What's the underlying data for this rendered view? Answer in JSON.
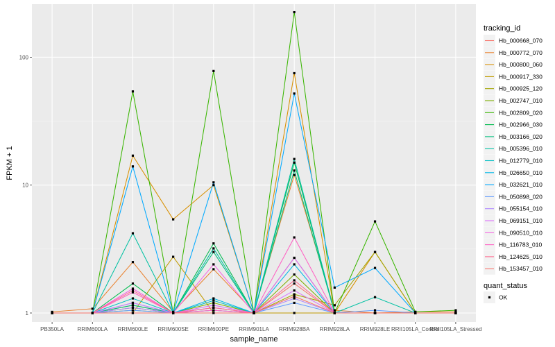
{
  "chart_data": {
    "type": "line",
    "xlabel": "sample_name",
    "ylabel": "FPKM + 1",
    "y_scale": "log10",
    "ylim": [
      0.85,
      260
    ],
    "y_ticks": [
      1,
      10,
      100
    ],
    "y_tick_labels": [
      "1",
      "10",
      "100"
    ],
    "categories": [
      "PB350LA",
      "RRIM600LA",
      "RRIM600LE",
      "RRIM600SE",
      "RRIM600PE",
      "RRIM901LA",
      "RRIM928BA",
      "RRIM928LA",
      "RRIM928LE",
      "RRII105LA_Control",
      "RRII105LA_Stressed"
    ],
    "legend_title": "tracking_id",
    "legend_position": "right",
    "grid": true,
    "series": [
      {
        "name": "Hb_000668_070",
        "color": "#F8766D",
        "values": [
          1.0,
          1.0,
          1.15,
          1.0,
          1.1,
          1.0,
          1.7,
          1.0,
          1.0,
          1.0,
          1.0
        ]
      },
      {
        "name": "Hb_000772_070",
        "color": "#EA8331",
        "values": [
          1.02,
          1.08,
          2.5,
          1.02,
          2.2,
          1.02,
          12,
          1.05,
          1.0,
          1.02,
          1.02
        ]
      },
      {
        "name": "Hb_000800_060",
        "color": "#D89000",
        "values": [
          1.0,
          1.0,
          17,
          5.4,
          10,
          1.0,
          75,
          1.0,
          3.0,
          1.0,
          1.0
        ]
      },
      {
        "name": "Hb_000917_330",
        "color": "#C09B00",
        "values": [
          1.0,
          1.0,
          1.0,
          2.75,
          1.0,
          1.0,
          1.0,
          1.0,
          1.0,
          1.0,
          1.0
        ]
      },
      {
        "name": "Hb_000925_120",
        "color": "#A3A500",
        "values": [
          1.0,
          1.0,
          1.05,
          1.0,
          1.05,
          1.0,
          1.4,
          1.15,
          3.0,
          1.0,
          1.0
        ]
      },
      {
        "name": "Hb_002747_010",
        "color": "#7CAE00",
        "values": [
          1.0,
          1.0,
          1.1,
          1.0,
          1.2,
          1.0,
          2.0,
          1.0,
          1.0,
          1.0,
          1.0
        ]
      },
      {
        "name": "Hb_002809_020",
        "color": "#39B600",
        "values": [
          1.0,
          1.0,
          54,
          1.0,
          78,
          1.0,
          225,
          1.0,
          5.2,
          1.02,
          1.05
        ]
      },
      {
        "name": "Hb_002966_030",
        "color": "#00BB4E",
        "values": [
          1.0,
          1.0,
          1.7,
          1.0,
          3.5,
          1.0,
          15,
          1.0,
          1.0,
          1.0,
          1.0
        ]
      },
      {
        "name": "Hb_003166_020",
        "color": "#00BF7D",
        "values": [
          1.0,
          1.0,
          1.15,
          1.0,
          3.0,
          1.0,
          13,
          1.0,
          1.0,
          1.0,
          1.0
        ]
      },
      {
        "name": "Hb_005396_010",
        "color": "#00C1A3",
        "values": [
          1.0,
          1.0,
          4.2,
          1.0,
          3.2,
          1.0,
          16,
          1.0,
          1.33,
          1.0,
          1.0
        ]
      },
      {
        "name": "Hb_012779_010",
        "color": "#00BFC4",
        "values": [
          1.0,
          1.0,
          1.3,
          1.0,
          1.25,
          1.0,
          2.7,
          1.0,
          1.0,
          1.0,
          1.0
        ]
      },
      {
        "name": "Hb_026650_010",
        "color": "#00B8E7",
        "values": [
          1.0,
          1.0,
          1.2,
          1.0,
          1.3,
          1.0,
          2.4,
          1.0,
          1.0,
          1.0,
          1.0
        ]
      },
      {
        "name": "Hb_032621_010",
        "color": "#00A9FF",
        "values": [
          1.0,
          1.0,
          14,
          1.0,
          10.5,
          1.0,
          52,
          1.58,
          2.25,
          1.0,
          1.0
        ]
      },
      {
        "name": "Hb_050898_020",
        "color": "#619CFF",
        "values": [
          1.0,
          1.0,
          1.05,
          1.0,
          1.05,
          1.0,
          1.2,
          1.0,
          1.05,
          1.0,
          1.0
        ]
      },
      {
        "name": "Hb_055154_010",
        "color": "#AE87FF",
        "values": [
          1.0,
          1.0,
          1.1,
          1.0,
          1.1,
          1.0,
          1.3,
          1.0,
          1.0,
          1.0,
          1.0
        ]
      },
      {
        "name": "Hb_069151_010",
        "color": "#DB72FB",
        "values": [
          1.0,
          1.0,
          1.2,
          1.0,
          1.15,
          1.0,
          1.5,
          1.0,
          1.0,
          1.0,
          1.0
        ]
      },
      {
        "name": "Hb_090510_010",
        "color": "#F564E3",
        "values": [
          1.0,
          1.0,
          1.55,
          1.0,
          2.4,
          1.0,
          2.7,
          1.0,
          1.0,
          1.0,
          1.0
        ]
      },
      {
        "name": "Hb_116783_010",
        "color": "#FF61C3",
        "values": [
          1.0,
          1.0,
          1.45,
          1.0,
          1.05,
          1.0,
          3.9,
          1.0,
          1.0,
          1.0,
          1.0
        ]
      },
      {
        "name": "Hb_124625_010",
        "color": "#FF6C91",
        "values": [
          1.0,
          1.0,
          1.5,
          1.0,
          1.1,
          1.0,
          1.8,
          1.0,
          1.0,
          1.0,
          1.0
        ]
      },
      {
        "name": "Hb_153457_010",
        "color": "#F8766D",
        "values": [
          1.0,
          1.0,
          1.0,
          1.0,
          1.0,
          1.0,
          1.35,
          1.0,
          1.0,
          1.0,
          1.0
        ]
      }
    ],
    "point_legend_title": "quant_status",
    "point_legend_label": "OK"
  }
}
